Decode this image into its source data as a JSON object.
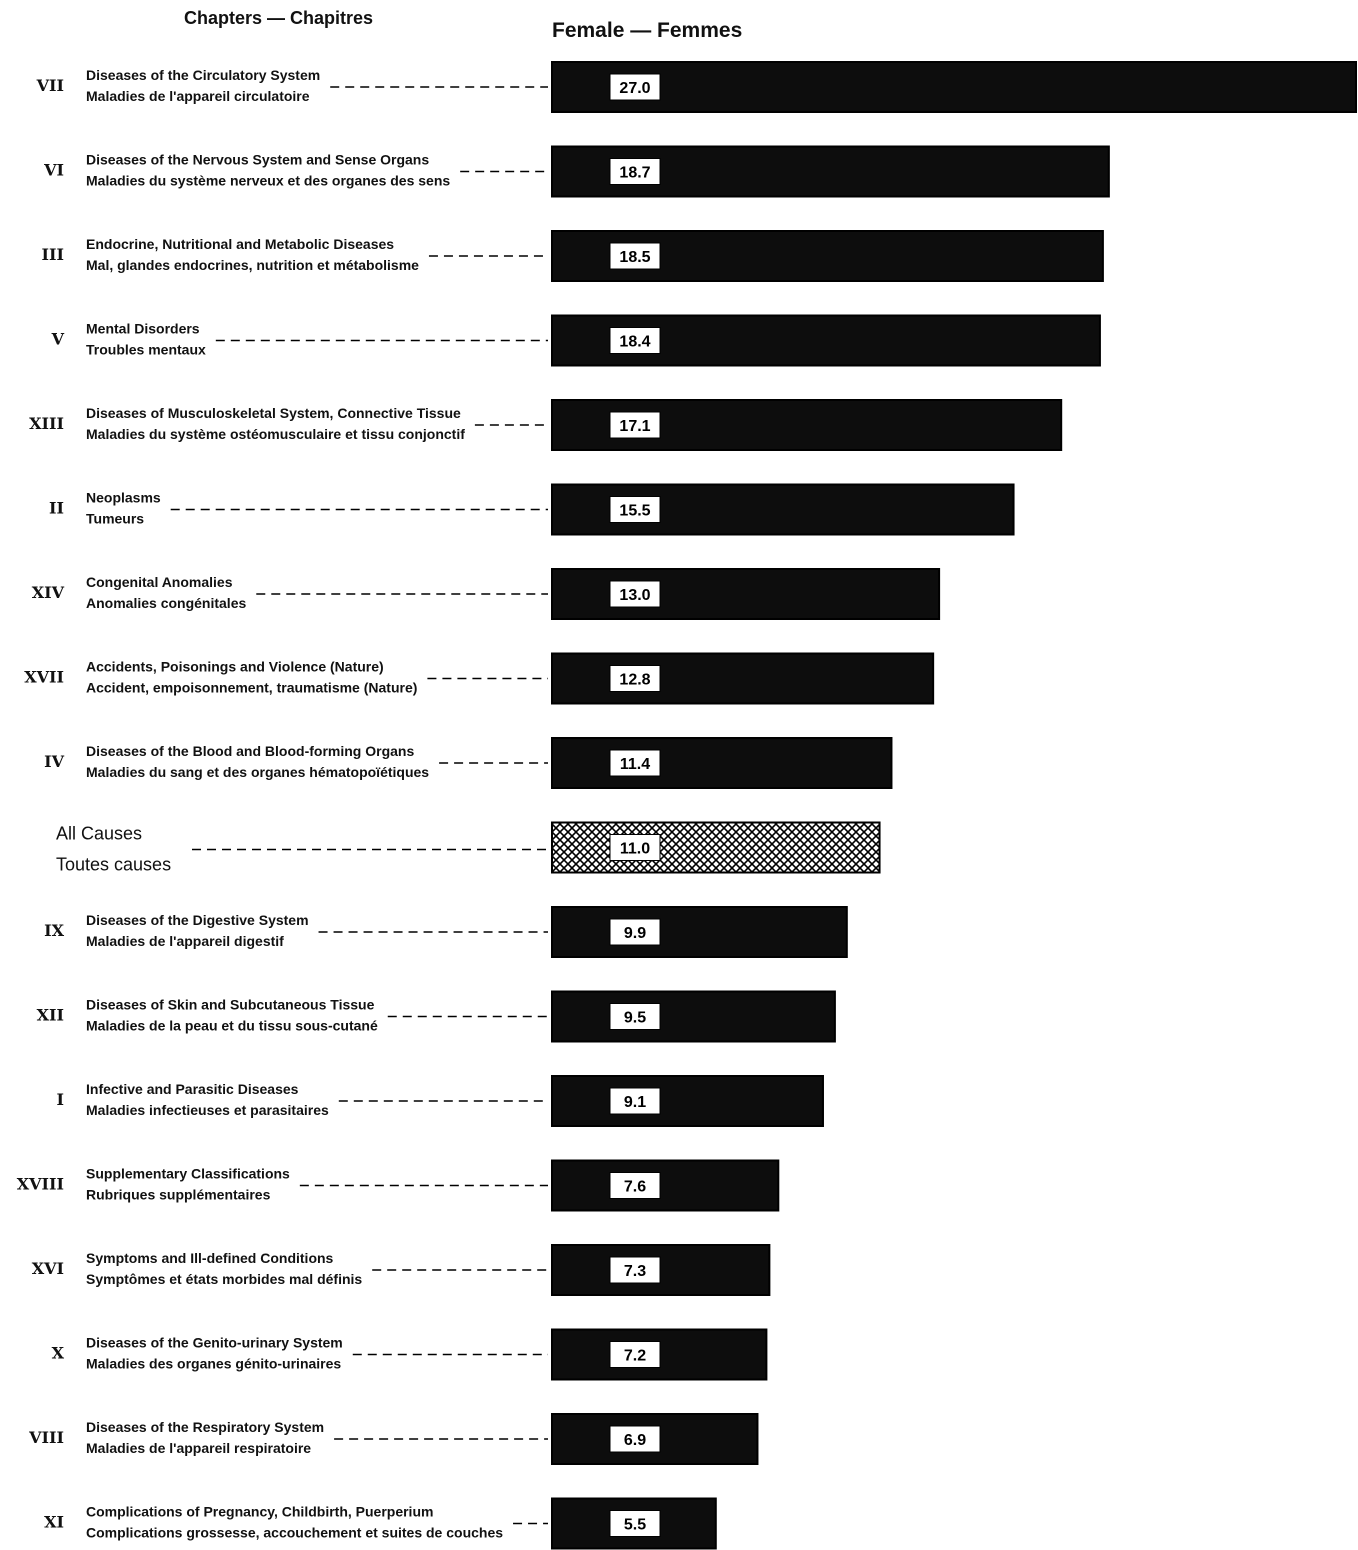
{
  "header": {
    "chapters_label": "Chapters — Chapitres",
    "series_label": "Female — Femmes"
  },
  "chart_data": {
    "type": "bar",
    "orientation": "horizontal",
    "series": [
      {
        "name": "Female — Femmes"
      }
    ],
    "colors": {
      "bar": "#0d0d0d",
      "highlight_pattern": "crosshatch",
      "label_box": "#ffffff"
    },
    "grid": false,
    "xlim": [
      0,
      27.0
    ],
    "rows": [
      {
        "chapter": "VII",
        "label_en": "Diseases of the Circulatory System",
        "label_fr": "Maladies de l'appareil circulatoire",
        "value": 27.0,
        "value_label": "27.0"
      },
      {
        "chapter": "VI",
        "label_en": "Diseases of the Nervous System and Sense Organs",
        "label_fr": "Maladies du système nerveux et des organes des sens",
        "value": 18.7,
        "value_label": "18.7"
      },
      {
        "chapter": "III",
        "label_en": "Endocrine, Nutritional and Metabolic Diseases",
        "label_fr": "Mal, glandes endocrines, nutrition et métabolisme",
        "value": 18.5,
        "value_label": "18.5"
      },
      {
        "chapter": "V",
        "label_en": "Mental Disorders",
        "label_fr": "Troubles mentaux",
        "value": 18.4,
        "value_label": "18.4"
      },
      {
        "chapter": "XIII",
        "label_en": "Diseases of Musculoskeletal System, Connective Tissue",
        "label_fr": "Maladies du système ostéomusculaire et tissu conjonctif",
        "value": 17.1,
        "value_label": "17.1"
      },
      {
        "chapter": "II",
        "label_en": "Neoplasms",
        "label_fr": "Tumeurs",
        "value": 15.5,
        "value_label": "15.5"
      },
      {
        "chapter": "XIV",
        "label_en": "Congenital Anomalies",
        "label_fr": "Anomalies congénitales",
        "value": 13.0,
        "value_label": "13.0"
      },
      {
        "chapter": "XVII",
        "label_en": "Accidents, Poisonings and Violence (Nature)",
        "label_fr": "Accident, empoisonnement, traumatisme (Nature)",
        "value": 12.8,
        "value_label": "12.8"
      },
      {
        "chapter": "IV",
        "label_en": "Diseases of the Blood and Blood-forming Organs",
        "label_fr": "Maladies du sang et des organes hématopoïétiques",
        "value": 11.4,
        "value_label": "11.4"
      },
      {
        "chapter": "",
        "label_en": "All Causes",
        "label_fr": "Toutes causes",
        "value": 11.0,
        "value_label": "11.0",
        "highlight": true
      },
      {
        "chapter": "IX",
        "label_en": "Diseases of the Digestive System",
        "label_fr": "Maladies de l'appareil digestif",
        "value": 9.9,
        "value_label": "9.9"
      },
      {
        "chapter": "XII",
        "label_en": "Diseases of Skin and Subcutaneous Tissue",
        "label_fr": "Maladies de la peau et du tissu sous-cutané",
        "value": 9.5,
        "value_label": "9.5"
      },
      {
        "chapter": "I",
        "label_en": "Infective and Parasitic Diseases",
        "label_fr": "Maladies infectieuses et parasitaires",
        "value": 9.1,
        "value_label": "9.1"
      },
      {
        "chapter": "XVIII",
        "label_en": "Supplementary Classifications",
        "label_fr": "Rubriques supplémentaires",
        "value": 7.6,
        "value_label": "7.6"
      },
      {
        "chapter": "XVI",
        "label_en": "Symptoms and Ill-defined Conditions",
        "label_fr": "Symptômes et états morbides mal définis",
        "value": 7.3,
        "value_label": "7.3"
      },
      {
        "chapter": "X",
        "label_en": "Diseases of the Genito-urinary System",
        "label_fr": "Maladies des organes génito-urinaires",
        "value": 7.2,
        "value_label": "7.2"
      },
      {
        "chapter": "VIII",
        "label_en": "Diseases of the Respiratory System",
        "label_fr": "Maladies de l'appareil respiratoire",
        "value": 6.9,
        "value_label": "6.9"
      },
      {
        "chapter": "XI",
        "label_en": "Complications of Pregnancy, Childbirth, Puerperium",
        "label_fr": "Complications grossesse, accouchement et suites de couches",
        "value": 5.5,
        "value_label": "5.5"
      }
    ]
  }
}
